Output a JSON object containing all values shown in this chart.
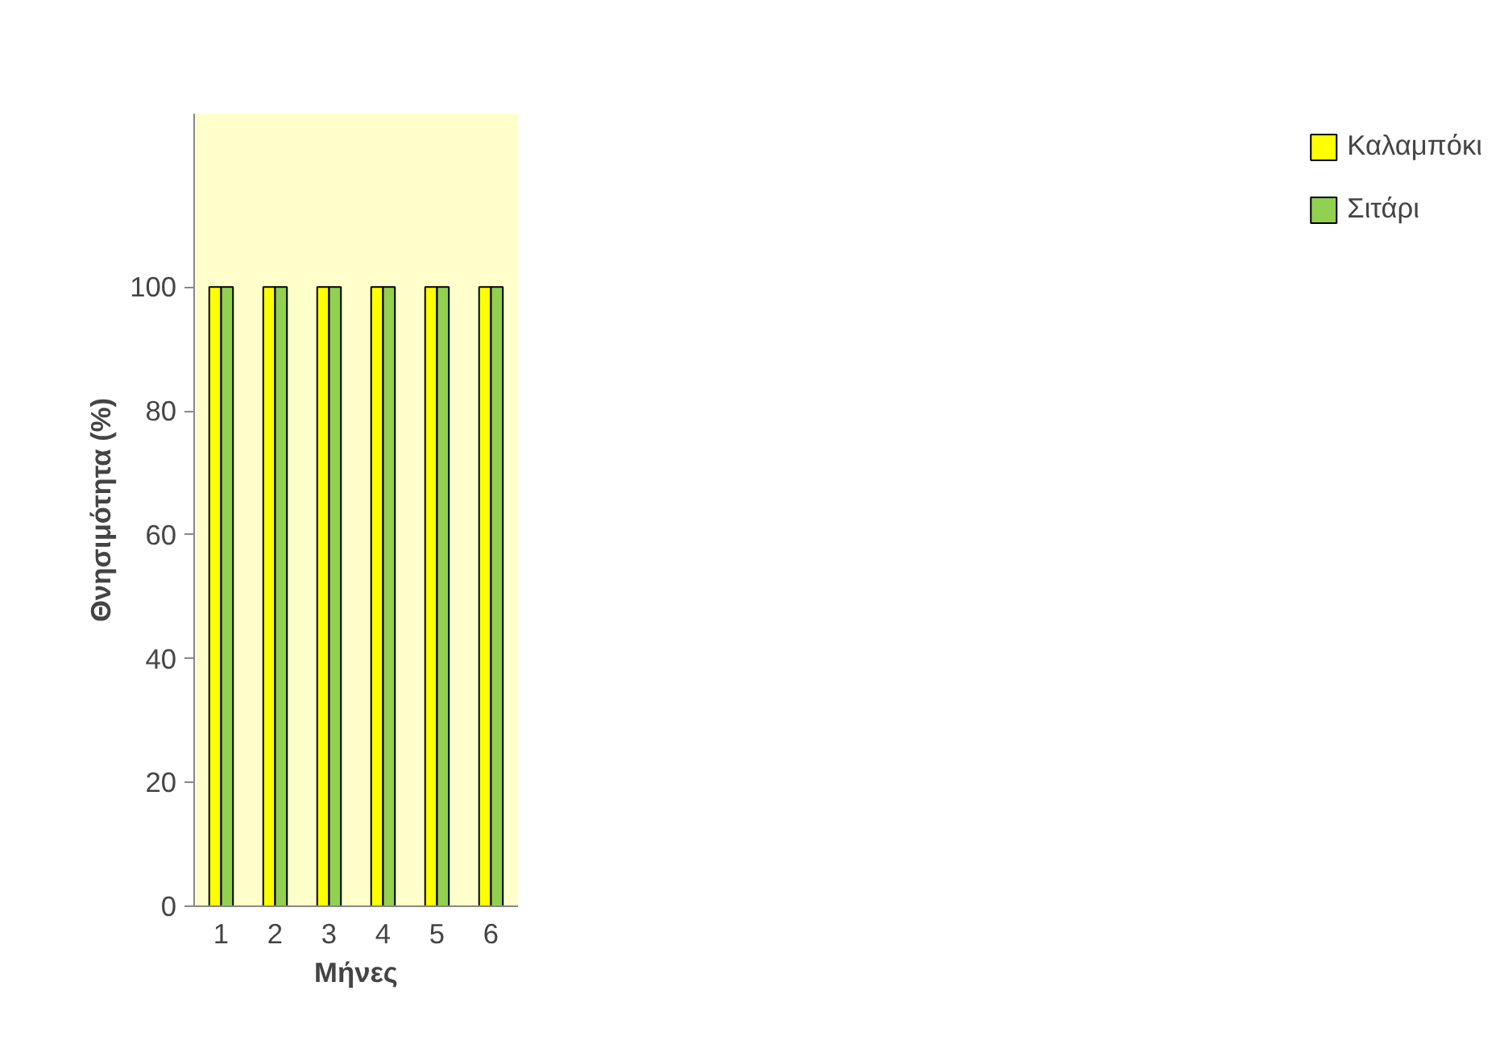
{
  "chart_data": {
    "type": "bar",
    "xlabel": "Μήνες",
    "ylabel": "Θνησιμότητα (%)",
    "categories": [
      "1",
      "2",
      "3",
      "4",
      "5",
      "6"
    ],
    "series": [
      {
        "name": "Καλαμπόκι",
        "color": "#ffff00",
        "values": [
          100,
          100,
          100,
          100,
          100,
          100
        ]
      },
      {
        "name": "Σιτάρι",
        "color": "#92d050",
        "values": [
          100,
          100,
          100,
          100,
          100,
          100
        ]
      }
    ],
    "ylim": [
      0,
      128
    ],
    "yticks": [
      0,
      20,
      40,
      60,
      80,
      100
    ],
    "grid": false,
    "legend": "right"
  }
}
